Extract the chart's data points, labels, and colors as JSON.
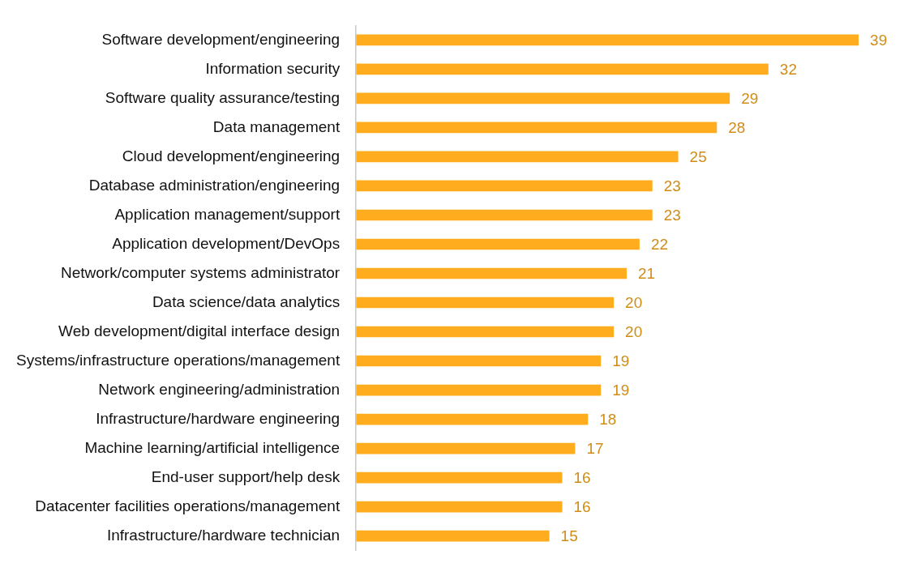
{
  "chart_data": {
    "type": "bar",
    "orientation": "horizontal",
    "data_labels": true,
    "legend": false,
    "categories": [
      "Software development/engineering",
      "Information security",
      "Software quality assurance/testing",
      "Data management",
      "Cloud development/engineering",
      "Database administration/engineering",
      "Application management/support",
      "Application development/DevOps",
      "Network/computer systems administrator",
      "Data science/data analytics",
      "Web development/digital interface design",
      "Systems/infrastructure operations/management",
      "Network engineering/administration",
      "Infrastructure/hardware engineering",
      "Machine learning/artificial intelligence",
      "End-user support/help desk",
      "Datacenter facilities operations/management",
      "Infrastructure/hardware technician"
    ],
    "series": [
      {
        "color": "#ffad1f",
        "values": [
          39,
          32,
          29,
          28,
          25,
          23,
          23,
          22,
          21,
          20,
          20,
          19,
          19,
          18,
          17,
          16,
          16,
          15
        ]
      }
    ]
  }
}
